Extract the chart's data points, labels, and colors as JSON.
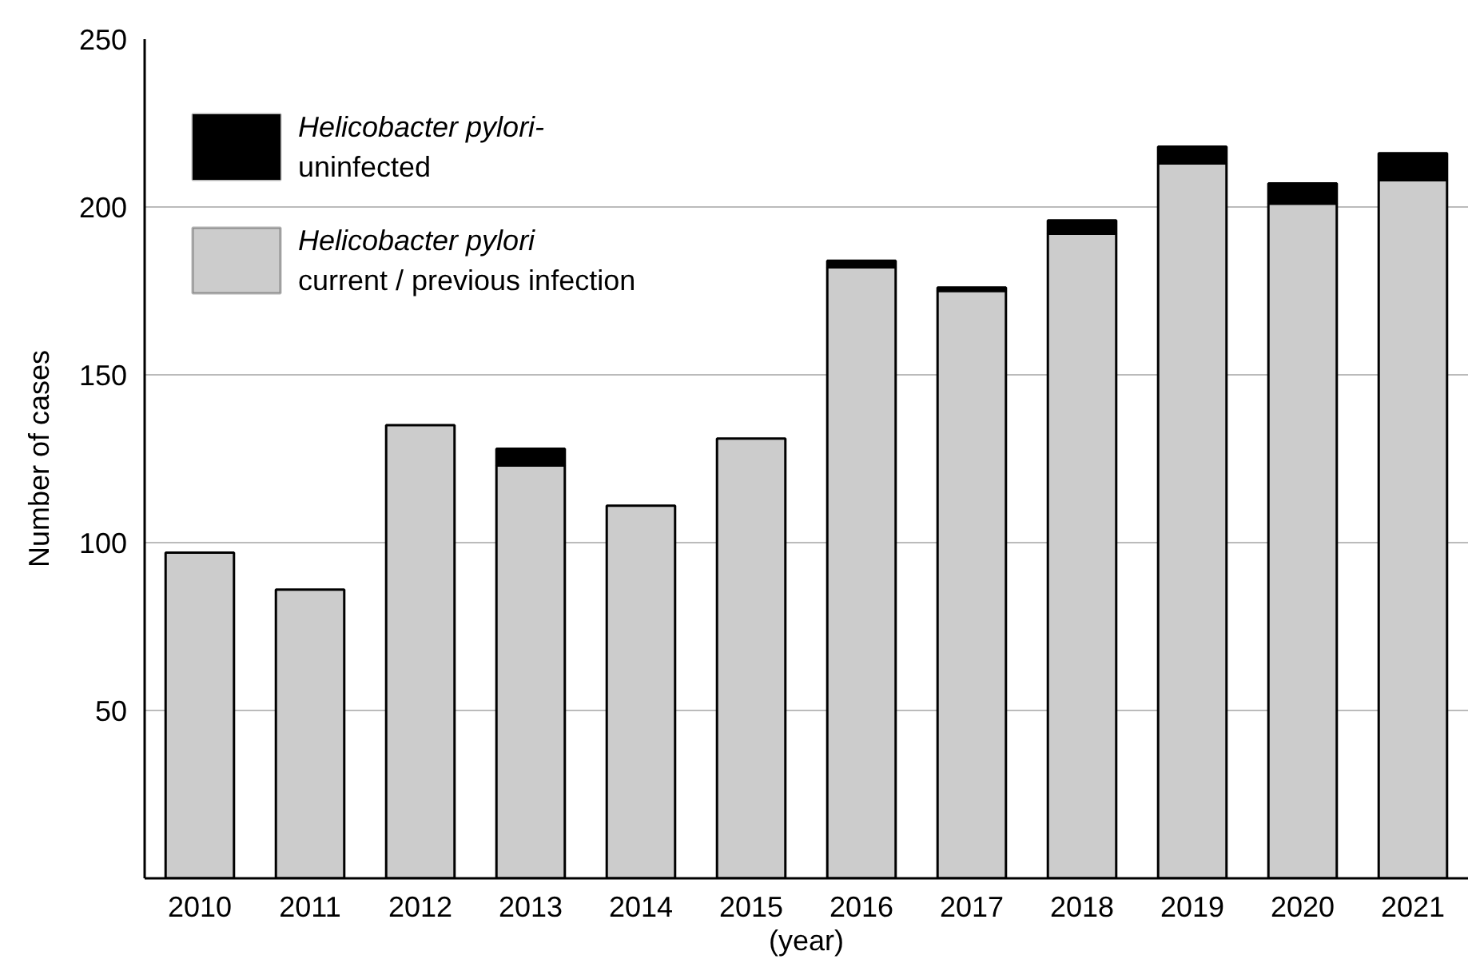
{
  "chart_data": {
    "type": "bar",
    "stacked": true,
    "ylabel": "Number of cases",
    "xlabel": "(year)",
    "categories": [
      "2010",
      "2011",
      "2012",
      "2013",
      "2014",
      "2015",
      "2016",
      "2017",
      "2018",
      "2019",
      "2020",
      "2021"
    ],
    "series": [
      {
        "name": "Helicobacter pylori\ncurrent / previous infection",
        "color": "#cccccc",
        "values": [
          97,
          86,
          135,
          123,
          111,
          131,
          182,
          175,
          192,
          213,
          201,
          208
        ]
      },
      {
        "name": "Helicobacter pylori-\nuninfected",
        "color": "#000000",
        "values": [
          null,
          null,
          null,
          5,
          null,
          null,
          2,
          1,
          4,
          5,
          6,
          8
        ]
      }
    ],
    "ylim": [
      0,
      250
    ],
    "yticks": [
      50,
      100,
      150,
      200,
      250
    ],
    "grid": "y",
    "legend": "top left"
  }
}
